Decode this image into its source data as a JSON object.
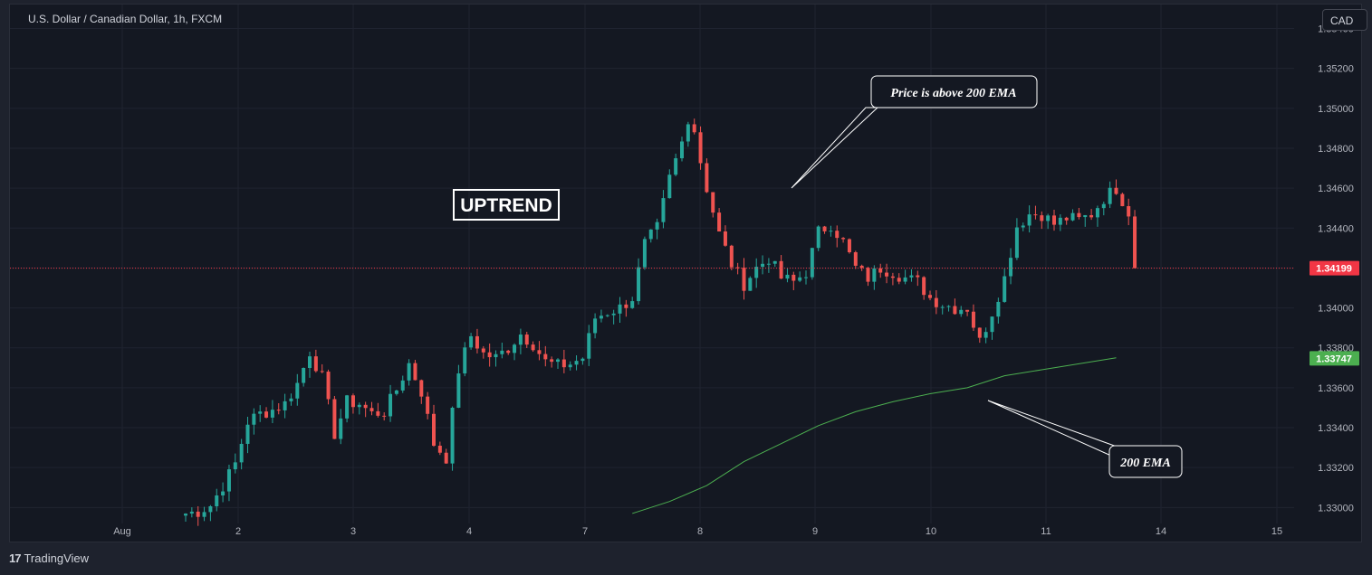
{
  "header": {
    "symbol_title": "U.S. Dollar / Canadian Dollar, 1h, FXCM",
    "currency_button": "CAD"
  },
  "footer": {
    "brand": "TradingView"
  },
  "colors": {
    "up": "#26a69a",
    "down": "#ef5350",
    "ema": "#4caf50",
    "last_price": "#f23645",
    "background": "#141822",
    "grid": "#1f2330"
  },
  "chart_data": {
    "type": "candlestick",
    "title": "U.S. Dollar / Canadian Dollar, 1h, FXCM",
    "x_ticks": [
      "Aug",
      "2",
      "3",
      "4",
      "7",
      "8",
      "9",
      "10",
      "11",
      "14",
      "15"
    ],
    "y_ticks": [
      "1.33000",
      "1.33200",
      "1.33400",
      "1.33600",
      "1.33800",
      "1.34000",
      "1.34200",
      "1.34400",
      "1.34600",
      "1.34800",
      "1.35000",
      "1.35200",
      "1.35400"
    ],
    "ylim": [
      1.3292,
      1.3552
    ],
    "last_price": {
      "label": "1.34199",
      "value": 1.34199
    },
    "ema_label": {
      "label": "1.33747",
      "value": 1.33747
    },
    "annotations": {
      "uptrend": "UPTREND",
      "price_note": "Price is above 200 EMA",
      "ema_note": "200 EMA"
    },
    "anchors": [
      [
        0,
        1.3297
      ],
      [
        2,
        1.3298
      ],
      [
        4,
        1.3301
      ],
      [
        6,
        1.3311
      ],
      [
        8,
        1.3322
      ],
      [
        10,
        1.3343
      ],
      [
        12,
        1.3347
      ],
      [
        14,
        1.3349
      ],
      [
        16,
        1.3352
      ],
      [
        18,
        1.3362
      ],
      [
        20,
        1.3378
      ],
      [
        22,
        1.3365
      ],
      [
        24,
        1.3337
      ],
      [
        26,
        1.3353
      ],
      [
        28,
        1.3352
      ],
      [
        30,
        1.3347
      ],
      [
        32,
        1.3348
      ],
      [
        34,
        1.3359
      ],
      [
        36,
        1.3372
      ],
      [
        38,
        1.3358
      ],
      [
        40,
        1.3332
      ],
      [
        42,
        1.3325
      ],
      [
        44,
        1.3369
      ],
      [
        46,
        1.3386
      ],
      [
        48,
        1.3377
      ],
      [
        50,
        1.3375
      ],
      [
        52,
        1.338
      ],
      [
        54,
        1.3387
      ],
      [
        56,
        1.3382
      ],
      [
        58,
        1.3373
      ],
      [
        60,
        1.3371
      ],
      [
        62,
        1.3372
      ],
      [
        64,
        1.3375
      ],
      [
        66,
        1.3395
      ],
      [
        68,
        1.3398
      ],
      [
        70,
        1.34
      ],
      [
        72,
        1.3405
      ],
      [
        74,
        1.3432
      ],
      [
        76,
        1.344
      ],
      [
        78,
        1.3465
      ],
      [
        80,
        1.3483
      ],
      [
        82,
        1.3487
      ],
      [
        84,
        1.346
      ],
      [
        86,
        1.3437
      ],
      [
        88,
        1.3422
      ],
      [
        90,
        1.3412
      ],
      [
        92,
        1.342
      ],
      [
        94,
        1.3425
      ],
      [
        96,
        1.3415
      ],
      [
        98,
        1.3413
      ],
      [
        100,
        1.3418
      ],
      [
        102,
        1.3438
      ],
      [
        104,
        1.3442
      ],
      [
        106,
        1.3433
      ],
      [
        108,
        1.342
      ],
      [
        110,
        1.3415
      ],
      [
        112,
        1.342
      ],
      [
        114,
        1.3418
      ],
      [
        116,
        1.3415
      ],
      [
        118,
        1.3413
      ],
      [
        120,
        1.3405
      ],
      [
        122,
        1.3402
      ],
      [
        124,
        1.34
      ],
      [
        126,
        1.34
      ],
      [
        128,
        1.3383
      ],
      [
        130,
        1.3398
      ],
      [
        132,
        1.3415
      ],
      [
        134,
        1.3441
      ],
      [
        136,
        1.3447
      ],
      [
        138,
        1.3447
      ],
      [
        140,
        1.3442
      ],
      [
        142,
        1.3445
      ],
      [
        144,
        1.3444
      ],
      [
        146,
        1.3447
      ],
      [
        148,
        1.3455
      ],
      [
        150,
        1.346
      ],
      [
        152,
        1.3448
      ],
      [
        153,
        1.342
      ]
    ],
    "ema_points": [
      [
        72,
        1.3297
      ],
      [
        78,
        1.3303
      ],
      [
        84,
        1.3311
      ],
      [
        90,
        1.3323
      ],
      [
        96,
        1.3332
      ],
      [
        102,
        1.3341
      ],
      [
        108,
        1.3348
      ],
      [
        114,
        1.3353
      ],
      [
        120,
        1.3357
      ],
      [
        126,
        1.336
      ],
      [
        132,
        1.3366
      ],
      [
        138,
        1.3369
      ],
      [
        144,
        1.3372
      ],
      [
        150,
        1.3375
      ]
    ]
  }
}
